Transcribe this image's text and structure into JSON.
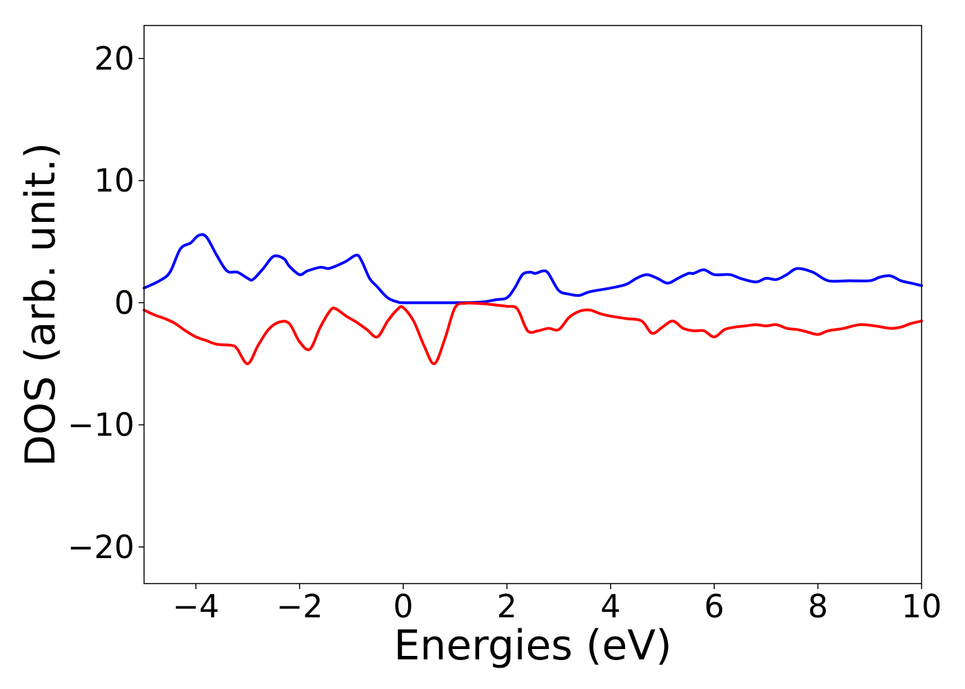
{
  "chart_data": {
    "type": "line",
    "title": "",
    "xlabel": "Energies (eV)",
    "ylabel": "DOS (arb. unit.)",
    "xlim": [
      -5,
      10
    ],
    "ylim": [
      -23,
      22.7
    ],
    "xticks": [
      -4,
      -2,
      0,
      2,
      4,
      6,
      8,
      10
    ],
    "xtick_labels": [
      "−4",
      "−2",
      "0",
      "2",
      "4",
      "6",
      "8",
      "10"
    ],
    "yticks": [
      -20,
      -10,
      0,
      10,
      20
    ],
    "ytick_labels": [
      "−20",
      "−10",
      "0",
      "10",
      "20"
    ],
    "grid": false,
    "legend": "none",
    "series": [
      {
        "color": "#0000ff",
        "x": [
          -5.0,
          -4.7,
          -4.5,
          -4.3,
          -4.1,
          -3.95,
          -3.8,
          -3.6,
          -3.4,
          -3.2,
          -3.0,
          -2.9,
          -2.7,
          -2.5,
          -2.3,
          -2.2,
          -2.0,
          -1.85,
          -1.6,
          -1.45,
          -1.3,
          -1.1,
          -0.9,
          -0.8,
          -0.65,
          -0.5,
          -0.3,
          -0.1,
          0.0,
          0.5,
          1.0,
          1.5,
          1.8,
          2.0,
          2.15,
          2.3,
          2.45,
          2.55,
          2.7,
          2.8,
          3.0,
          3.2,
          3.4,
          3.6,
          4.0,
          4.3,
          4.5,
          4.7,
          4.9,
          5.1,
          5.3,
          5.5,
          5.6,
          5.8,
          6.0,
          6.3,
          6.5,
          6.8,
          7.0,
          7.2,
          7.4,
          7.6,
          7.9,
          8.2,
          8.6,
          9.0,
          9.2,
          9.4,
          9.6,
          9.8,
          10.0
        ],
        "y": [
          1.2,
          1.8,
          2.5,
          4.4,
          4.9,
          5.5,
          5.4,
          3.9,
          2.6,
          2.5,
          2.0,
          1.9,
          2.8,
          3.8,
          3.6,
          3.0,
          2.3,
          2.6,
          2.9,
          2.8,
          3.0,
          3.4,
          3.9,
          3.4,
          2.0,
          1.3,
          0.4,
          0.05,
          0.0,
          0.0,
          0.0,
          0.05,
          0.25,
          0.4,
          1.2,
          2.3,
          2.5,
          2.4,
          2.6,
          2.4,
          1.0,
          0.7,
          0.6,
          0.9,
          1.2,
          1.5,
          2.0,
          2.3,
          2.0,
          1.6,
          2.0,
          2.4,
          2.4,
          2.7,
          2.3,
          2.3,
          2.0,
          1.7,
          2.0,
          1.9,
          2.3,
          2.8,
          2.5,
          1.8,
          1.8,
          1.8,
          2.1,
          2.2,
          1.8,
          1.6,
          1.4
        ]
      },
      {
        "color": "#ff0000",
        "x": [
          -5.0,
          -4.8,
          -4.6,
          -4.4,
          -4.2,
          -4.0,
          -3.8,
          -3.6,
          -3.3,
          -3.2,
          -3.0,
          -2.8,
          -2.6,
          -2.4,
          -2.2,
          -2.0,
          -1.8,
          -1.6,
          -1.4,
          -1.3,
          -1.1,
          -0.9,
          -0.7,
          -0.5,
          -0.3,
          -0.1,
          0.0,
          0.2,
          0.4,
          0.6,
          0.8,
          1.0,
          1.2,
          1.4,
          1.6,
          1.8,
          2.0,
          2.2,
          2.4,
          2.6,
          2.8,
          3.0,
          3.2,
          3.4,
          3.6,
          3.8,
          4.0,
          4.3,
          4.6,
          4.8,
          5.0,
          5.2,
          5.4,
          5.6,
          5.8,
          6.0,
          6.2,
          6.4,
          6.6,
          6.8,
          7.0,
          7.2,
          7.4,
          7.6,
          7.8,
          8.0,
          8.2,
          8.5,
          8.8,
          9.1,
          9.4,
          9.6,
          9.8,
          10.0
        ],
        "y": [
          -0.6,
          -1.0,
          -1.3,
          -1.7,
          -2.3,
          -2.8,
          -3.1,
          -3.4,
          -3.5,
          -3.8,
          -5.0,
          -3.5,
          -2.2,
          -1.6,
          -1.7,
          -3.2,
          -3.8,
          -2.0,
          -0.6,
          -0.5,
          -1.1,
          -1.6,
          -2.2,
          -2.8,
          -1.5,
          -0.5,
          -0.4,
          -1.5,
          -3.5,
          -5.0,
          -3.0,
          -0.4,
          -0.05,
          -0.05,
          -0.1,
          -0.2,
          -0.3,
          -0.5,
          -2.3,
          -2.3,
          -2.1,
          -2.2,
          -1.2,
          -0.7,
          -0.6,
          -0.9,
          -1.1,
          -1.3,
          -1.5,
          -2.5,
          -2.0,
          -1.5,
          -2.1,
          -2.3,
          -2.3,
          -2.8,
          -2.2,
          -2.0,
          -1.9,
          -1.8,
          -1.9,
          -1.8,
          -2.1,
          -2.2,
          -2.4,
          -2.6,
          -2.3,
          -2.1,
          -1.8,
          -1.9,
          -2.1,
          -2.0,
          -1.7,
          -1.5
        ]
      }
    ]
  }
}
